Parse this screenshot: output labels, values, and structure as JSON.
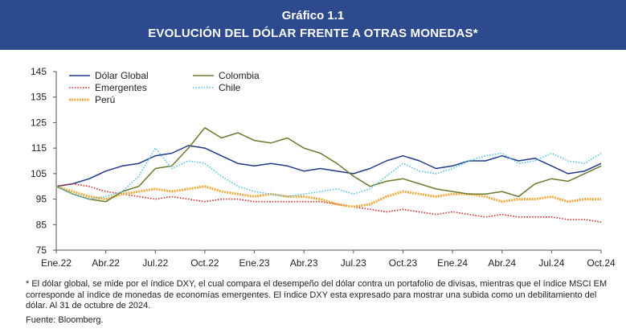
{
  "header": {
    "title": "Gráfico 1.1",
    "subtitle": "EVOLUCIÓN DEL DÓLAR FRENTE A OTRAS MONEDAS*",
    "background": "#2d4a8f"
  },
  "footnote": "* El dólar global, se mide por el índice DXY, el cual compara el desempeño del dólar contra un portafolio de divisas, mientras que el índice MSCI EM corresponde al índice de monedas de economías emergentes. El índice DXY esta expresado para mostrar una subida como un debilitamiento del dólar. Al 31 de octubre de 2024.",
  "source": "Fuente: Bloomberg.",
  "chart_data": {
    "type": "line",
    "title": "",
    "xlabel": "",
    "ylabel": "",
    "ylim": [
      75,
      145
    ],
    "yticks": [
      75,
      85,
      95,
      105,
      115,
      125,
      135,
      145
    ],
    "xtick_labels": [
      "Ene.22",
      "Abr.22",
      "Jul.22",
      "Oct.22",
      "Ene.23",
      "Abr.23",
      "Jul.23",
      "Oct.23",
      "Ene.24",
      "Abr.24",
      "Jul.24",
      "Oct.24"
    ],
    "x_range": [
      "2022-01",
      "2024-10"
    ],
    "grid": false,
    "legend_position": "top-left",
    "x": [
      "2022-01",
      "2022-02",
      "2022-03",
      "2022-04",
      "2022-05",
      "2022-06",
      "2022-07",
      "2022-08",
      "2022-09",
      "2022-10",
      "2022-11",
      "2022-12",
      "2023-01",
      "2023-02",
      "2023-03",
      "2023-04",
      "2023-05",
      "2023-06",
      "2023-07",
      "2023-08",
      "2023-09",
      "2023-10",
      "2023-11",
      "2023-12",
      "2024-01",
      "2024-02",
      "2024-03",
      "2024-04",
      "2024-05",
      "2024-06",
      "2024-07",
      "2024-08",
      "2024-09",
      "2024-10"
    ],
    "series": [
      {
        "name": "Dólar Global",
        "color": "#1f3a8c",
        "style": "solid",
        "values": [
          100,
          101,
          103,
          106,
          108,
          109,
          112,
          113,
          116,
          115,
          112,
          109,
          108,
          109,
          108,
          106,
          107,
          106,
          105,
          107,
          110,
          112,
          110,
          107,
          108,
          110,
          110,
          112,
          110,
          111,
          108,
          105,
          106,
          109
        ]
      },
      {
        "name": "Emergentes",
        "color": "#d0332f",
        "style": "dotted",
        "values": [
          100,
          101,
          100,
          98,
          97,
          96,
          95,
          96,
          95,
          94,
          95,
          95,
          94,
          94,
          94,
          94,
          94,
          93,
          92,
          91,
          90,
          91,
          90,
          89,
          90,
          89,
          88,
          89,
          88,
          88,
          88,
          87,
          87,
          86
        ]
      },
      {
        "name": "Perú",
        "color": "#f2a93b",
        "style": "dashed",
        "values": [
          100,
          98,
          96,
          95,
          97,
          98,
          99,
          98,
          99,
          100,
          98,
          97,
          96,
          97,
          96,
          96,
          95,
          93,
          92,
          93,
          96,
          98,
          97,
          96,
          97,
          97,
          96,
          94,
          95,
          95,
          96,
          94,
          95,
          95
        ]
      },
      {
        "name": "Colombia",
        "color": "#6b7a2e",
        "style": "solid",
        "values": [
          100,
          97,
          95,
          94,
          98,
          100,
          107,
          108,
          115,
          123,
          119,
          121,
          118,
          117,
          119,
          115,
          113,
          109,
          104,
          100,
          102,
          103,
          101,
          99,
          98,
          97,
          97,
          98,
          96,
          101,
          103,
          102,
          105,
          108
        ]
      },
      {
        "name": "Chile",
        "color": "#5bc4ea",
        "style": "dotted",
        "values": [
          100,
          97,
          95,
          96,
          98,
          104,
          115,
          107,
          110,
          109,
          104,
          100,
          98,
          97,
          96,
          97,
          98,
          99,
          97,
          99,
          104,
          109,
          106,
          105,
          107,
          110,
          112,
          113,
          109,
          110,
          113,
          110,
          109,
          113
        ]
      }
    ]
  }
}
